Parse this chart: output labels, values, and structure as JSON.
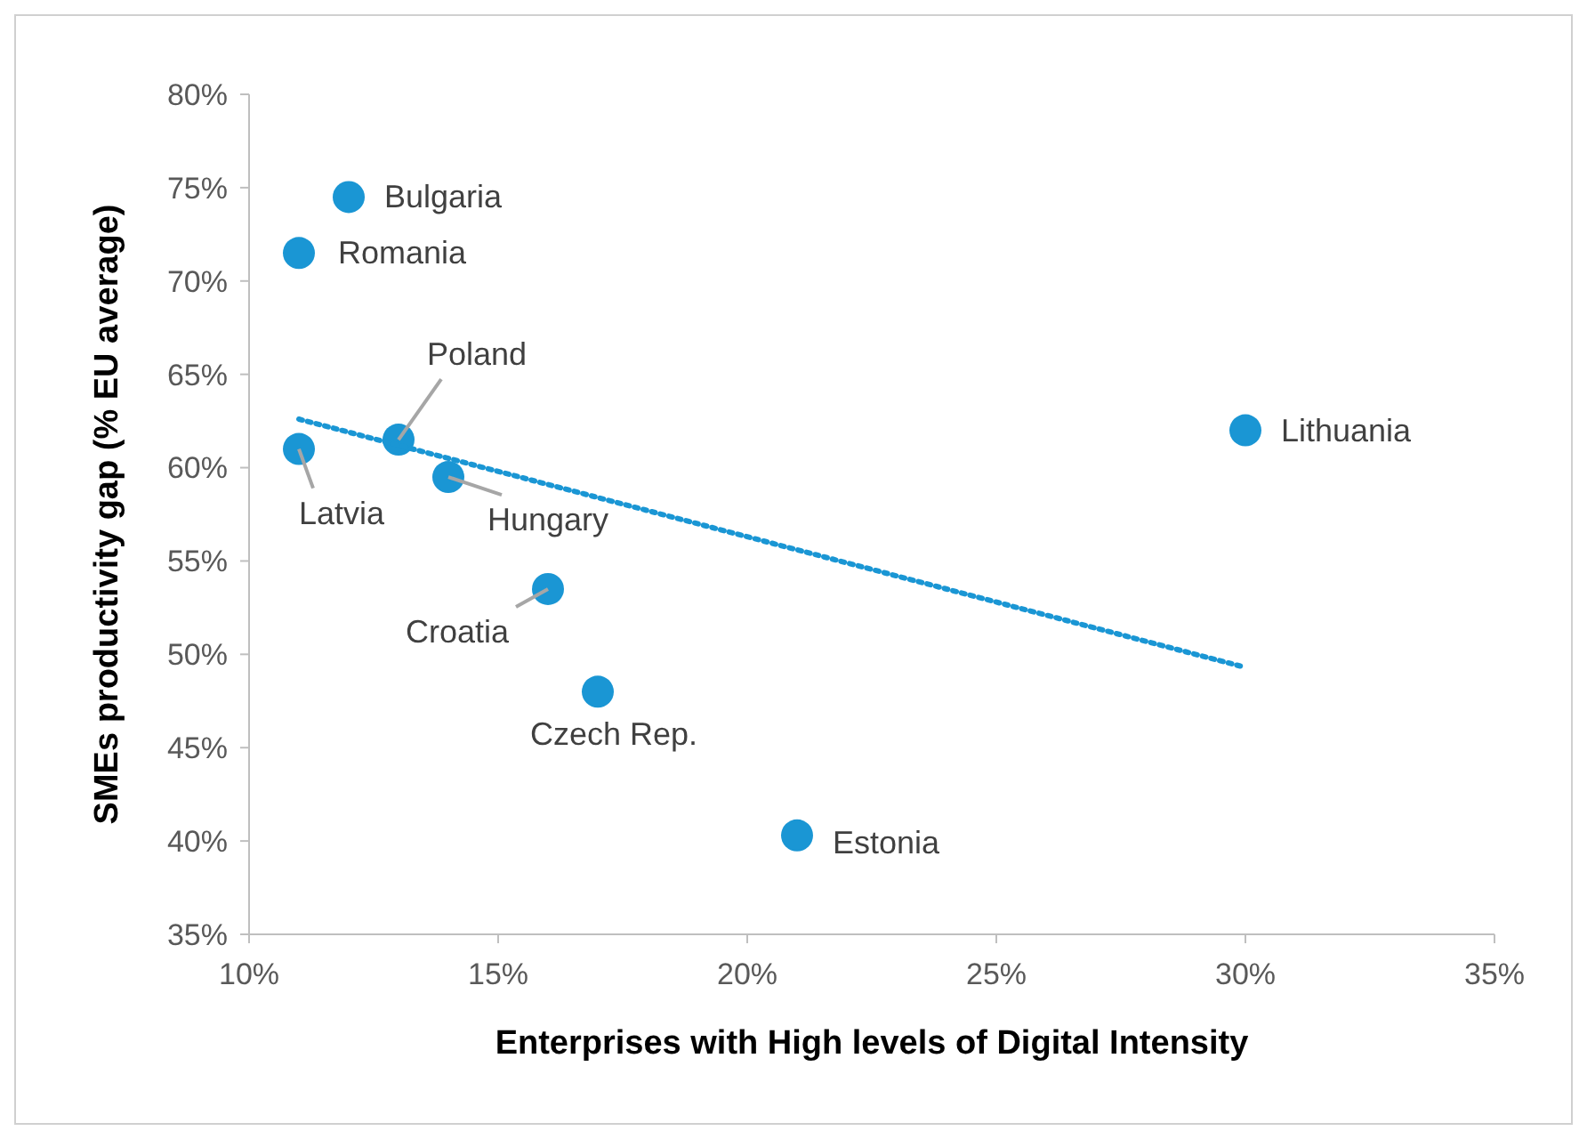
{
  "chart_data": {
    "type": "scatter",
    "xlabel": "Enterprises with High levels of Digital Intensity",
    "ylabel": "SMEs productivity gap (% EU average)",
    "xlim": [
      10,
      35
    ],
    "ylim": [
      35,
      80
    ],
    "xticks": [
      {
        "value": 10,
        "label": "10%"
      },
      {
        "value": 15,
        "label": "15%"
      },
      {
        "value": 20,
        "label": "20%"
      },
      {
        "value": 25,
        "label": "25%"
      },
      {
        "value": 30,
        "label": "30%"
      },
      {
        "value": 35,
        "label": "35%"
      }
    ],
    "yticks": [
      {
        "value": 35,
        "label": "35%"
      },
      {
        "value": 40,
        "label": "40%"
      },
      {
        "value": 45,
        "label": "45%"
      },
      {
        "value": 50,
        "label": "50%"
      },
      {
        "value": 55,
        "label": "55%"
      },
      {
        "value": 60,
        "label": "60%"
      },
      {
        "value": 65,
        "label": "65%"
      },
      {
        "value": 70,
        "label": "70%"
      },
      {
        "value": 75,
        "label": "75%"
      },
      {
        "value": 80,
        "label": "80%"
      }
    ],
    "grid": false,
    "marker": "circle",
    "series": [
      {
        "color": "#1a96d4",
        "x": [
          12,
          11,
          13,
          11,
          14,
          16,
          17,
          21,
          30
        ],
        "values": [
          74.5,
          71.5,
          61.5,
          61,
          59.5,
          53.5,
          48,
          40.3,
          62
        ]
      },
      {
        "type": "line",
        "color": "#1a96d4",
        "line_style": "dotted",
        "marker": "none",
        "x": [
          11,
          30
        ],
        "values": [
          62.6,
          49.3
        ]
      }
    ],
    "annotations": [
      {
        "text": "Bulgaria",
        "x": 12,
        "y": 74.5
      },
      {
        "text": "Romania",
        "x": 11,
        "y": 71.5
      },
      {
        "text": "Poland",
        "x": 13,
        "y": 61.5
      },
      {
        "text": "Latvia",
        "x": 11,
        "y": 61
      },
      {
        "text": "Hungary",
        "x": 14,
        "y": 59.5
      },
      {
        "text": "Croatia",
        "x": 16,
        "y": 53.5
      },
      {
        "text": "Czech Rep.",
        "x": 17,
        "y": 48
      },
      {
        "text": "Estonia",
        "x": 21,
        "y": 40.3
      },
      {
        "text": "Lithuania",
        "x": 30,
        "y": 62
      }
    ]
  }
}
